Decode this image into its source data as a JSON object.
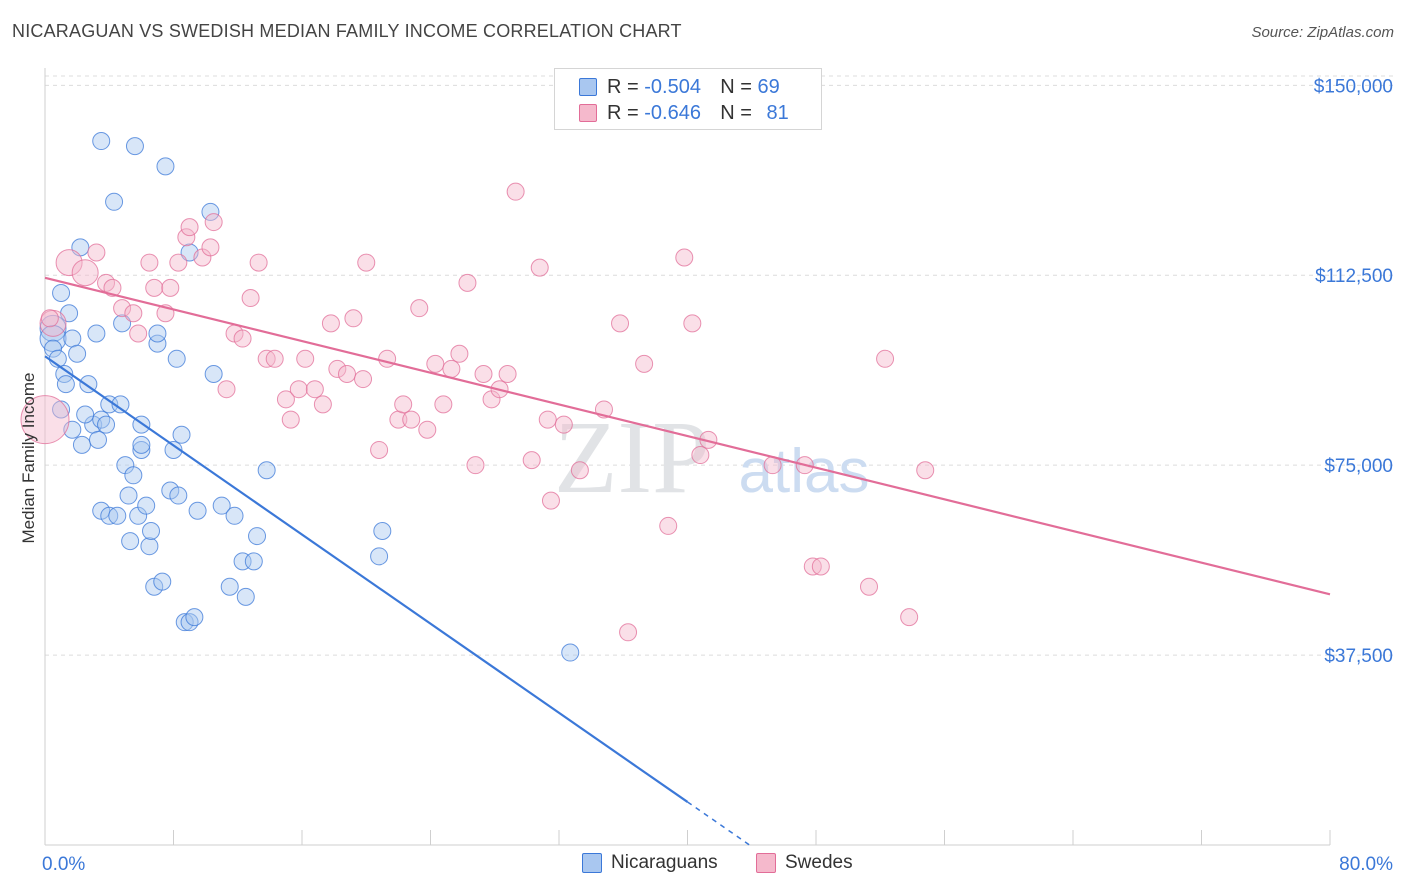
{
  "title": "NICARAGUAN VS SWEDISH MEDIAN FAMILY INCOME CORRELATION CHART",
  "source": "Source: ZipAtlas.com",
  "watermark": {
    "zip": "ZIP",
    "atlas": "atlas"
  },
  "legend": {
    "r_label": "R =",
    "n_label": "N =",
    "rows": [
      {
        "r": "-0.504",
        "n": "69"
      },
      {
        "r": "-0.646",
        "n": "81"
      }
    ]
  },
  "chart_data": {
    "type": "scatter",
    "title": "NICARAGUAN VS SWEDISH MEDIAN FAMILY INCOME CORRELATION CHART",
    "xlabel": "",
    "ylabel": "Median Family Income",
    "xlim": [
      0,
      80
    ],
    "ylim": [
      0,
      155000
    ],
    "x_tick_labels": [
      "0.0%",
      "80.0%"
    ],
    "y_ticks": [
      37500,
      75000,
      112500,
      150000
    ],
    "y_tick_labels": [
      "$37,500",
      "$75,000",
      "$112,500",
      "$150,000"
    ],
    "grid": true,
    "series": [
      {
        "name": "Nicaraguans",
        "color": "#3b78d8",
        "fill": "#a9c7f0",
        "trend": {
          "x0": 0,
          "y0": 96500,
          "x1": 40,
          "y1": 8500,
          "dash_to_x": 44
        },
        "points": [
          [
            0.5,
            102,
            "l"
          ],
          [
            0.5,
            100,
            "l"
          ],
          [
            0.5,
            98
          ],
          [
            0.8,
            96
          ],
          [
            1,
            109
          ],
          [
            1,
            86
          ],
          [
            1.2,
            93
          ],
          [
            1.3,
            91
          ],
          [
            1.5,
            105
          ],
          [
            1.7,
            100
          ],
          [
            1.7,
            82
          ],
          [
            2,
            97
          ],
          [
            2.2,
            118
          ],
          [
            2.3,
            79
          ],
          [
            2.7,
            91
          ],
          [
            3,
            83
          ],
          [
            3.2,
            101
          ],
          [
            3.3,
            80
          ],
          [
            3.5,
            84
          ],
          [
            3.5,
            66
          ],
          [
            3.8,
            83
          ],
          [
            4,
            87
          ],
          [
            4,
            65
          ],
          [
            4.3,
            127
          ],
          [
            4.5,
            65
          ],
          [
            4.7,
            87
          ],
          [
            4.8,
            103
          ],
          [
            5,
            75
          ],
          [
            5.2,
            69
          ],
          [
            5.3,
            60
          ],
          [
            5.5,
            73
          ],
          [
            5.8,
            65
          ],
          [
            6,
            78
          ],
          [
            6,
            79
          ],
          [
            6.3,
            67
          ],
          [
            6.5,
            59
          ],
          [
            6.6,
            62
          ],
          [
            6.8,
            51
          ],
          [
            7,
            99
          ],
          [
            7,
            101
          ],
          [
            7.3,
            52
          ],
          [
            7.5,
            134
          ],
          [
            7.8,
            70
          ],
          [
            8,
            78
          ],
          [
            8.2,
            96
          ],
          [
            8.3,
            69
          ],
          [
            8.5,
            81
          ],
          [
            8.7,
            44
          ],
          [
            9,
            44
          ],
          [
            9,
            117
          ],
          [
            9.3,
            45
          ],
          [
            9.5,
            66
          ],
          [
            10.3,
            125
          ],
          [
            10.5,
            93
          ],
          [
            11,
            67
          ],
          [
            11.5,
            51
          ],
          [
            11.8,
            65
          ],
          [
            12.3,
            56
          ],
          [
            12.5,
            49
          ],
          [
            13,
            56
          ],
          [
            13.2,
            61
          ],
          [
            13.8,
            74
          ],
          [
            20.8,
            57
          ],
          [
            21,
            62
          ],
          [
            32.7,
            38
          ],
          [
            3.5,
            139
          ],
          [
            5.6,
            138
          ],
          [
            2.5,
            85
          ],
          [
            6,
            83
          ]
        ]
      },
      {
        "name": "Swedes",
        "color": "#e26d98",
        "fill": "#f5b9cc",
        "trend": {
          "x0": 0,
          "y0": 112000,
          "x1": 80,
          "y1": 49500
        },
        "points": [
          [
            0,
            84,
            "xl"
          ],
          [
            0.5,
            103,
            "l"
          ],
          [
            1.5,
            115,
            "l"
          ],
          [
            2.5,
            113,
            "l"
          ],
          [
            3.2,
            117
          ],
          [
            3.8,
            111
          ],
          [
            4.2,
            110
          ],
          [
            4.8,
            106
          ],
          [
            5.5,
            105
          ],
          [
            5.8,
            101
          ],
          [
            6.5,
            115
          ],
          [
            6.8,
            110
          ],
          [
            7.5,
            105
          ],
          [
            7.8,
            110
          ],
          [
            8.3,
            115
          ],
          [
            8.8,
            120
          ],
          [
            9,
            122
          ],
          [
            9.8,
            116
          ],
          [
            10.3,
            118
          ],
          [
            10.5,
            123
          ],
          [
            11.3,
            90
          ],
          [
            11.8,
            101
          ],
          [
            12.3,
            100
          ],
          [
            12.8,
            108
          ],
          [
            13.3,
            115
          ],
          [
            13.8,
            96
          ],
          [
            14.3,
            96
          ],
          [
            15,
            88
          ],
          [
            15.3,
            84
          ],
          [
            15.8,
            90
          ],
          [
            16.2,
            96
          ],
          [
            16.8,
            90
          ],
          [
            17.3,
            87
          ],
          [
            17.8,
            103
          ],
          [
            18.2,
            94
          ],
          [
            18.8,
            93
          ],
          [
            19.2,
            104
          ],
          [
            19.8,
            92
          ],
          [
            20,
            115
          ],
          [
            20.8,
            78
          ],
          [
            21.3,
            96
          ],
          [
            22,
            84
          ],
          [
            22.3,
            87
          ],
          [
            22.8,
            84
          ],
          [
            23.3,
            106
          ],
          [
            23.8,
            82
          ],
          [
            24.3,
            95
          ],
          [
            24.8,
            87
          ],
          [
            25.3,
            94
          ],
          [
            25.8,
            97
          ],
          [
            26.3,
            111
          ],
          [
            26.8,
            75
          ],
          [
            27.3,
            93
          ],
          [
            27.8,
            88
          ],
          [
            28.3,
            90
          ],
          [
            28.8,
            93
          ],
          [
            29.3,
            129
          ],
          [
            30.3,
            76
          ],
          [
            30.8,
            114
          ],
          [
            31.3,
            84
          ],
          [
            31.5,
            68
          ],
          [
            32.3,
            83
          ],
          [
            33.3,
            74
          ],
          [
            34.8,
            86
          ],
          [
            35.8,
            103
          ],
          [
            36.3,
            42
          ],
          [
            37.3,
            95
          ],
          [
            38.8,
            63
          ],
          [
            39.8,
            116
          ],
          [
            40.3,
            103
          ],
          [
            40.8,
            77
          ],
          [
            41.3,
            80
          ],
          [
            45.3,
            75
          ],
          [
            47.8,
            55
          ],
          [
            48.3,
            55
          ],
          [
            51.3,
            51
          ],
          [
            52.3,
            96
          ],
          [
            53.8,
            45
          ],
          [
            54.8,
            74
          ],
          [
            47.3,
            75
          ],
          [
            0.3,
            104
          ]
        ]
      }
    ]
  }
}
